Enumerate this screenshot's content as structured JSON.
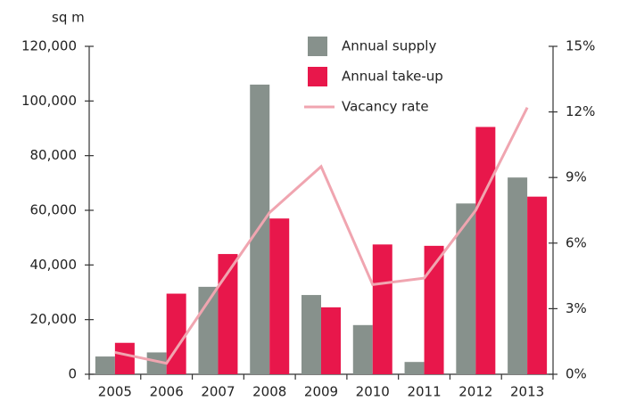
{
  "chart_data": {
    "type": "bar_line",
    "y_label": "sq m",
    "categories": [
      "2005",
      "2006",
      "2007",
      "2008",
      "2009",
      "2010",
      "2011",
      "2012",
      "2013"
    ],
    "series": [
      {
        "name": "Annual supply",
        "color": "#87918c",
        "values": [
          6500,
          8000,
          32000,
          106000,
          29000,
          18000,
          4500,
          62500,
          72000
        ]
      },
      {
        "name": "Annual take-up",
        "color": "#e8174b",
        "values": [
          11500,
          29500,
          44000,
          57000,
          24500,
          47500,
          47000,
          90500,
          65000
        ]
      },
      {
        "name": "Vacancy rate",
        "color": "#f0a5b0",
        "axis": "y2",
        "values": [
          1.0,
          0.5,
          4.0,
          7.4,
          9.5,
          4.1,
          4.4,
          7.5,
          12.2
        ]
      }
    ],
    "ylim": [
      0,
      120000
    ],
    "yticks": [
      0,
      {
        "value": 20000,
        "label": "20,000"
      },
      {
        "value": 40000,
        "label": "40,000"
      },
      {
        "value": 60000,
        "label": "60,000"
      },
      {
        "value": 80000,
        "label": "80,000"
      },
      {
        "value": 100000,
        "label": "100,000"
      },
      {
        "value": 120000,
        "label": "120,000"
      }
    ],
    "y2lim": [
      0,
      15
    ],
    "y2ticks": [
      {
        "value": 0,
        "label": "0%"
      },
      {
        "value": 3,
        "label": "3%"
      },
      {
        "value": 6,
        "label": "6%"
      },
      {
        "value": 9,
        "label": "9%"
      },
      {
        "value": 12,
        "label": "12%"
      },
      {
        "value": 15,
        "label": "15%"
      }
    ]
  }
}
